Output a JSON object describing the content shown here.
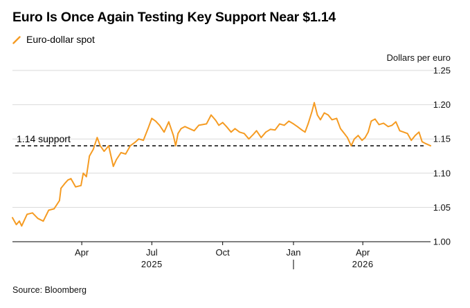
{
  "header": {
    "title": "Euro Is Once Again Testing Key Support Near $1.14"
  },
  "footer": {
    "source": "Source: Bloomberg"
  },
  "colors": {
    "series": "#f59b22",
    "grid": "#d9d9d9",
    "axis": "#000000",
    "support": "#000000"
  },
  "chart_data": {
    "type": "line",
    "ylabel": "Dollars per euro",
    "ylim": [
      1.0,
      1.25
    ],
    "yticks": [
      1.0,
      1.05,
      1.1,
      1.15,
      1.2,
      1.25
    ],
    "ytick_labels": [
      "1.00",
      "1.05",
      "1.10",
      "1.15",
      "1.20",
      "1.25"
    ],
    "grid": true,
    "x_range": [
      "2025-01-01",
      "2026-06-28"
    ],
    "month_ticks": [
      {
        "date": "2025-04-01",
        "label": "Apr"
      },
      {
        "date": "2025-07-01",
        "label": "Jul"
      },
      {
        "date": "2025-10-01",
        "label": "Oct"
      },
      {
        "date": "2026-01-01",
        "label": "Jan"
      },
      {
        "date": "2026-04-01",
        "label": "Apr"
      }
    ],
    "year_labels": [
      {
        "date": "2025-07-01",
        "label": "2025"
      },
      {
        "date": "2026-04-01",
        "label": "2026"
      }
    ],
    "year_divider": "2026-01-01",
    "annotations": [
      {
        "label": "1.14 support",
        "y": 1.14
      }
    ],
    "series": [
      {
        "name": "Euro-dollar spot",
        "points": [
          [
            "2025-01-01",
            1.035
          ],
          [
            "2025-01-06",
            1.025
          ],
          [
            "2025-01-10",
            1.03
          ],
          [
            "2025-01-13",
            1.023
          ],
          [
            "2025-01-20",
            1.04
          ],
          [
            "2025-01-27",
            1.042
          ],
          [
            "2025-02-03",
            1.034
          ],
          [
            "2025-02-10",
            1.03
          ],
          [
            "2025-02-17",
            1.046
          ],
          [
            "2025-02-24",
            1.048
          ],
          [
            "2025-03-03",
            1.06
          ],
          [
            "2025-03-05",
            1.078
          ],
          [
            "2025-03-10",
            1.085
          ],
          [
            "2025-03-14",
            1.09
          ],
          [
            "2025-03-18",
            1.092
          ],
          [
            "2025-03-24",
            1.08
          ],
          [
            "2025-03-31",
            1.082
          ],
          [
            "2025-04-03",
            1.1
          ],
          [
            "2025-04-07",
            1.095
          ],
          [
            "2025-04-11",
            1.125
          ],
          [
            "2025-04-16",
            1.135
          ],
          [
            "2025-04-21",
            1.152
          ],
          [
            "2025-04-25",
            1.14
          ],
          [
            "2025-04-30",
            1.132
          ],
          [
            "2025-05-06",
            1.14
          ],
          [
            "2025-05-12",
            1.11
          ],
          [
            "2025-05-16",
            1.12
          ],
          [
            "2025-05-22",
            1.13
          ],
          [
            "2025-05-28",
            1.128
          ],
          [
            "2025-06-03",
            1.14
          ],
          [
            "2025-06-09",
            1.145
          ],
          [
            "2025-06-14",
            1.15
          ],
          [
            "2025-06-20",
            1.148
          ],
          [
            "2025-06-26",
            1.165
          ],
          [
            "2025-07-01",
            1.18
          ],
          [
            "2025-07-06",
            1.176
          ],
          [
            "2025-07-11",
            1.17
          ],
          [
            "2025-07-17",
            1.16
          ],
          [
            "2025-07-23",
            1.175
          ],
          [
            "2025-07-29",
            1.155
          ],
          [
            "2025-08-01",
            1.14
          ],
          [
            "2025-08-04",
            1.158
          ],
          [
            "2025-08-08",
            1.165
          ],
          [
            "2025-08-13",
            1.168
          ],
          [
            "2025-08-19",
            1.165
          ],
          [
            "2025-08-25",
            1.162
          ],
          [
            "2025-08-31",
            1.17
          ],
          [
            "2025-09-05",
            1.171
          ],
          [
            "2025-09-10",
            1.172
          ],
          [
            "2025-09-16",
            1.185
          ],
          [
            "2025-09-22",
            1.177
          ],
          [
            "2025-09-26",
            1.17
          ],
          [
            "2025-10-01",
            1.174
          ],
          [
            "2025-10-06",
            1.168
          ],
          [
            "2025-10-12",
            1.16
          ],
          [
            "2025-10-17",
            1.165
          ],
          [
            "2025-10-23",
            1.16
          ],
          [
            "2025-10-29",
            1.158
          ],
          [
            "2025-11-04",
            1.15
          ],
          [
            "2025-11-10",
            1.157
          ],
          [
            "2025-11-14",
            1.162
          ],
          [
            "2025-11-20",
            1.152
          ],
          [
            "2025-11-26",
            1.16
          ],
          [
            "2025-12-02",
            1.164
          ],
          [
            "2025-12-08",
            1.163
          ],
          [
            "2025-12-14",
            1.172
          ],
          [
            "2025-12-20",
            1.17
          ],
          [
            "2025-12-26",
            1.176
          ],
          [
            "2026-01-01",
            1.172
          ],
          [
            "2026-01-06",
            1.168
          ],
          [
            "2026-01-12",
            1.163
          ],
          [
            "2026-01-16",
            1.16
          ],
          [
            "2026-01-20",
            1.172
          ],
          [
            "2026-01-25",
            1.19
          ],
          [
            "2026-01-28",
            1.203
          ],
          [
            "2026-02-01",
            1.185
          ],
          [
            "2026-02-05",
            1.178
          ],
          [
            "2026-02-10",
            1.188
          ],
          [
            "2026-02-15",
            1.185
          ],
          [
            "2026-02-20",
            1.178
          ],
          [
            "2026-02-26",
            1.18
          ],
          [
            "2026-03-03",
            1.165
          ],
          [
            "2026-03-08",
            1.158
          ],
          [
            "2026-03-12",
            1.152
          ],
          [
            "2026-03-17",
            1.14
          ],
          [
            "2026-03-21",
            1.15
          ],
          [
            "2026-03-26",
            1.155
          ],
          [
            "2026-03-31",
            1.148
          ],
          [
            "2026-04-04",
            1.152
          ],
          [
            "2026-04-08",
            1.16
          ],
          [
            "2026-04-12",
            1.176
          ],
          [
            "2026-04-17",
            1.179
          ],
          [
            "2026-04-22",
            1.171
          ],
          [
            "2026-04-28",
            1.173
          ],
          [
            "2026-05-04",
            1.168
          ],
          [
            "2026-05-09",
            1.17
          ],
          [
            "2026-05-14",
            1.175
          ],
          [
            "2026-05-19",
            1.162
          ],
          [
            "2026-05-24",
            1.16
          ],
          [
            "2026-05-29",
            1.158
          ],
          [
            "2026-06-03",
            1.148
          ],
          [
            "2026-06-08",
            1.155
          ],
          [
            "2026-06-13",
            1.16
          ],
          [
            "2026-06-17",
            1.146
          ],
          [
            "2026-06-22",
            1.143
          ],
          [
            "2026-06-28",
            1.14
          ]
        ]
      }
    ]
  }
}
